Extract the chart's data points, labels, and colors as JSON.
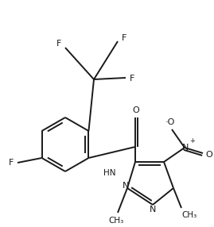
{
  "background_color": "#ffffff",
  "line_color": "#1a1a1a",
  "line_width": 1.4,
  "figsize": [
    2.69,
    2.86
  ],
  "dpi": 100,
  "xlim": [
    0,
    269
  ],
  "ylim": [
    0,
    286
  ]
}
